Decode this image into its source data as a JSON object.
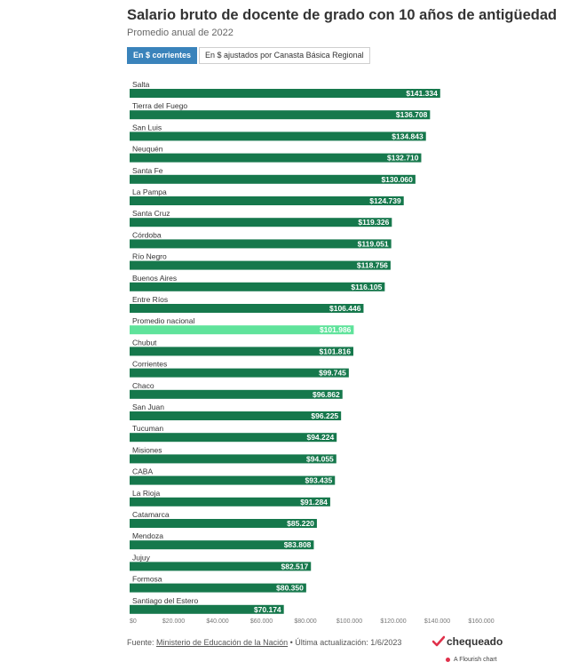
{
  "header": {
    "title": "Salario bruto de docente de grado con 10 años de antigüedad",
    "subtitle": "Promedio anual de 2022"
  },
  "toggle": {
    "active_label": "En $ corrientes",
    "inactive_label": "En $ ajustados por Canasta Básica Regional"
  },
  "footer": {
    "source_prefix": "Fuente: ",
    "source_link": "Ministerio de Educación de la Nación",
    "update_text": " • Última actualización: 1/6/2023",
    "brand": "chequeado",
    "flourish": "A Flourish chart"
  },
  "colors": {
    "bar": "#16784c",
    "highlight": "#5fe39b",
    "accent": "#3a83bb",
    "brand_red": "#e0314b"
  },
  "chart_data": {
    "type": "bar",
    "orientation": "horizontal",
    "xlim": [
      0,
      160000
    ],
    "ticks": [
      "$0",
      "$20.000",
      "$40.000",
      "$60.000",
      "$80.000",
      "$100.000",
      "$120.000",
      "$140.000",
      "$160.000"
    ],
    "tick_values": [
      0,
      20000,
      40000,
      60000,
      80000,
      100000,
      120000,
      140000,
      160000
    ],
    "highlight": "Promedio nacional",
    "categories": [
      "Salta",
      "Tierra del Fuego",
      "San Luis",
      "Neuquén",
      "Santa Fe",
      "La Pampa",
      "Santa Cruz",
      "Córdoba",
      "Río Negro",
      "Buenos Aires",
      "Entre Ríos",
      "Promedio nacional",
      "Chubut",
      "Corrientes",
      "Chaco",
      "San Juan",
      "Tucuman",
      "Misiones",
      "CABA",
      "La Rioja",
      "Catamarca",
      "Mendoza",
      "Jujuy",
      "Formosa",
      "Santiago del Estero"
    ],
    "values": [
      141334,
      136708,
      134843,
      132710,
      130060,
      124739,
      119326,
      119051,
      118756,
      116105,
      106446,
      101986,
      101816,
      99745,
      96862,
      96225,
      94224,
      94055,
      93435,
      91284,
      85220,
      83808,
      82517,
      80350,
      70174
    ],
    "labels": [
      "$141.334",
      "$136.708",
      "$134.843",
      "$132.710",
      "$130.060",
      "$124.739",
      "$119.326",
      "$119.051",
      "$118.756",
      "$116.105",
      "$106.446",
      "$101.986",
      "$101.816",
      "$99.745",
      "$96.862",
      "$96.225",
      "$94.224",
      "$94.055",
      "$93.435",
      "$91.284",
      "$85.220",
      "$83.808",
      "$82.517",
      "$80.350",
      "$70.174"
    ]
  }
}
